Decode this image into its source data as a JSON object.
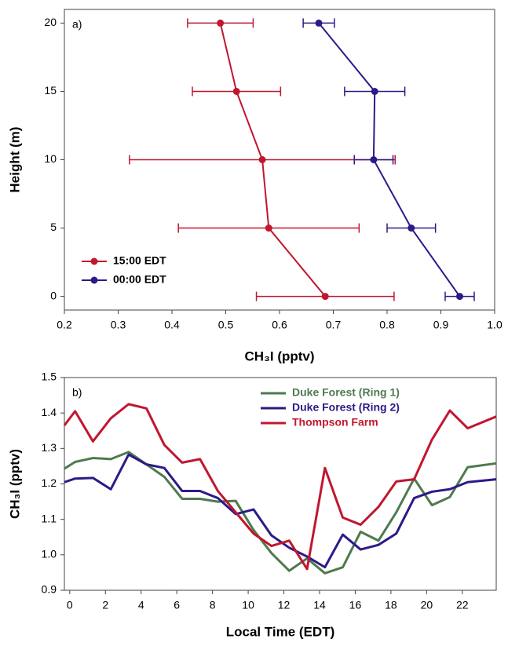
{
  "chart_data": [
    {
      "type": "scatter",
      "panel_label": "a)",
      "xlabel": "CH₃I (pptv)",
      "ylabel": "Height (m)",
      "y": [
        0,
        5,
        10,
        15,
        20
      ],
      "series": [
        {
          "name": "15:00 EDT",
          "color": "#c0172f",
          "x": [
            0.685,
            0.58,
            0.568,
            0.52,
            0.49
          ],
          "xerr": [
            0.128,
            0.168,
            0.247,
            0.082,
            0.061
          ]
        },
        {
          "name": "00:00 EDT",
          "color": "#2d1a87",
          "x": [
            0.935,
            0.845,
            0.775,
            0.777,
            0.673
          ],
          "xerr": [
            0.027,
            0.045,
            0.036,
            0.056,
            0.029
          ]
        }
      ],
      "xlim": [
        0.2,
        1.0
      ],
      "xticks": [
        0.2,
        0.3,
        0.4,
        0.5,
        0.6,
        0.7,
        0.8,
        0.9,
        {
          "value": 1,
          "label": "1.0"
        }
      ],
      "ylim": [
        -1,
        21
      ],
      "yticks": [
        0,
        5,
        10,
        15,
        20
      ],
      "legend": "lower left",
      "legend_text_colored": false
    },
    {
      "type": "line",
      "panel_label": "b)",
      "xlabel": "Local Time (EDT)",
      "ylabel": "CH₃I (pptv)",
      "x": [
        -0.3,
        0.3,
        1.3,
        2.3,
        3.3,
        4.3,
        5.3,
        6.3,
        7.3,
        8.3,
        9.3,
        10.3,
        11.3,
        12.3,
        13.3,
        14.3,
        15.3,
        16.3,
        17.3,
        18.3,
        19.3,
        20.3,
        21.3,
        22.3,
        23.9
      ],
      "series": [
        {
          "name": "Duke Forest (Ring 1)",
          "color": "#4e7a4e",
          "values": [
            1.243,
            1.262,
            1.273,
            1.27,
            1.29,
            1.255,
            1.22,
            1.158,
            1.158,
            1.15,
            1.152,
            1.07,
            1.005,
            0.955,
            0.99,
            0.948,
            0.965,
            1.065,
            1.04,
            1.12,
            1.215,
            1.14,
            1.163,
            1.247,
            1.258
          ]
        },
        {
          "name": "Duke Forest (Ring 2)",
          "color": "#2d1a87",
          "values": [
            1.205,
            1.215,
            1.217,
            1.185,
            1.283,
            1.255,
            1.245,
            1.18,
            1.18,
            1.16,
            1.115,
            1.128,
            1.055,
            1.02,
            0.995,
            0.965,
            1.057,
            1.015,
            1.028,
            1.06,
            1.16,
            1.178,
            1.185,
            1.205,
            1.213
          ]
        },
        {
          "name": "Thompson Farm",
          "color": "#c0172f",
          "values": [
            1.365,
            1.405,
            1.32,
            1.385,
            1.425,
            1.413,
            1.31,
            1.26,
            1.27,
            1.18,
            1.12,
            1.06,
            1.025,
            1.04,
            0.96,
            1.245,
            1.105,
            1.085,
            1.135,
            1.207,
            1.213,
            1.325,
            1.407,
            1.357,
            1.39
          ]
        }
      ],
      "xlim": [
        -0.3,
        23.9
      ],
      "xticks": [
        0,
        2,
        4,
        6,
        8,
        10,
        12,
        14,
        16,
        18,
        20,
        22
      ],
      "ylim": [
        0.9,
        1.5
      ],
      "yticks": [
        0.9,
        {
          "value": 1,
          "label": "1.0"
        },
        1.1,
        1.2,
        1.3,
        1.4,
        1.5
      ],
      "legend": "upper right",
      "legend_text_colored": true
    }
  ]
}
